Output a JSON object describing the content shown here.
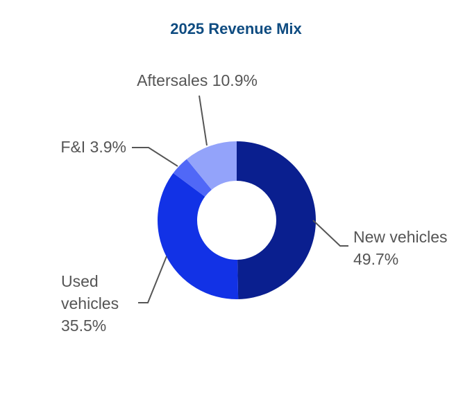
{
  "chart_data": {
    "type": "pie",
    "variant": "donut",
    "title": "2025 Revenue Mix",
    "slices": [
      {
        "name": "New vehicles",
        "value": 49.7,
        "label_lines": [
          "New vehicles",
          "49.7%"
        ],
        "color": "#0a1f8f"
      },
      {
        "name": "Used vehicles",
        "value": 35.5,
        "label_lines": [
          "Used",
          "vehicles",
          "35.5%"
        ],
        "color": "#1232e6"
      },
      {
        "name": "F&I",
        "value": 3.9,
        "label_lines": [
          "F&I 3.9%"
        ],
        "color": "#5068f7"
      },
      {
        "name": "Aftersales",
        "value": 10.9,
        "label_lines": [
          "Aftersales 10.9%"
        ],
        "color": "#93a3fa"
      }
    ]
  }
}
